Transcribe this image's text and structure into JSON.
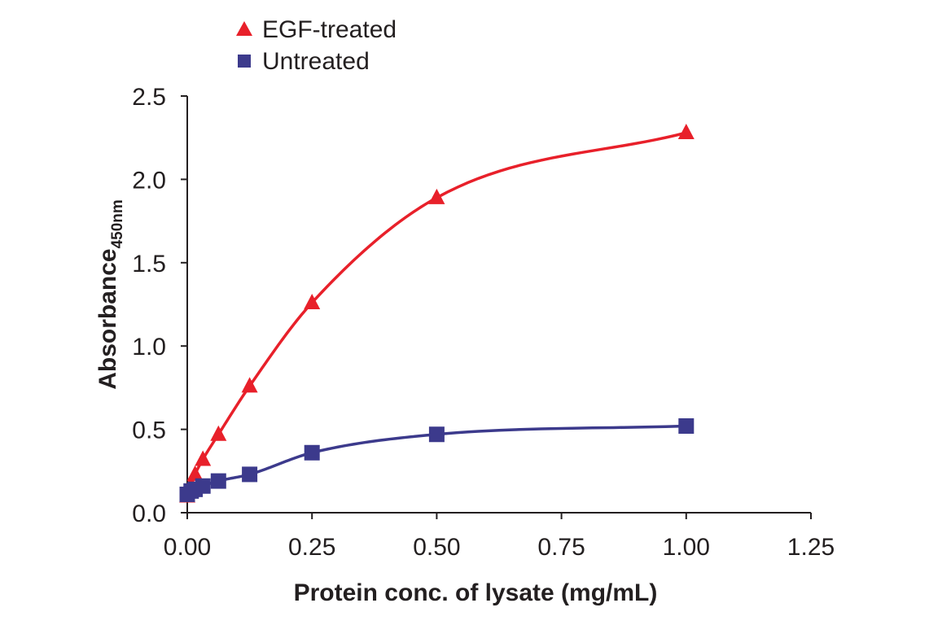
{
  "chart_data": {
    "type": "line",
    "title": "",
    "xlabel": "Protein conc. of lysate (mg/mL)",
    "ylabel": "Absorbance",
    "ylabel_subscript": "450nm",
    "xlim": [
      0,
      1.25
    ],
    "ylim": [
      0,
      2.5
    ],
    "x_ticks": [
      "0.00",
      "0.25",
      "0.50",
      "0.75",
      "1.00",
      "1.25"
    ],
    "y_ticks": [
      "0.0",
      "0.5",
      "1.0",
      "1.5",
      "2.0",
      "2.5"
    ],
    "grid": false,
    "legend_position": "top-left",
    "series": [
      {
        "name": "EGF-treated",
        "marker": "triangle",
        "color": "#e8202a",
        "x": [
          0.0,
          0.0078,
          0.0156,
          0.0313,
          0.0625,
          0.125,
          0.25,
          0.5,
          1.0
        ],
        "y": [
          0.1,
          0.17,
          0.23,
          0.32,
          0.47,
          0.76,
          1.26,
          1.89,
          2.28
        ]
      },
      {
        "name": "Untreated",
        "marker": "square",
        "color": "#3c3a8c",
        "x": [
          0.0,
          0.0078,
          0.0156,
          0.0313,
          0.0625,
          0.125,
          0.25,
          0.5,
          1.0
        ],
        "y": [
          0.11,
          0.13,
          0.14,
          0.16,
          0.19,
          0.23,
          0.36,
          0.47,
          0.52
        ]
      }
    ]
  }
}
